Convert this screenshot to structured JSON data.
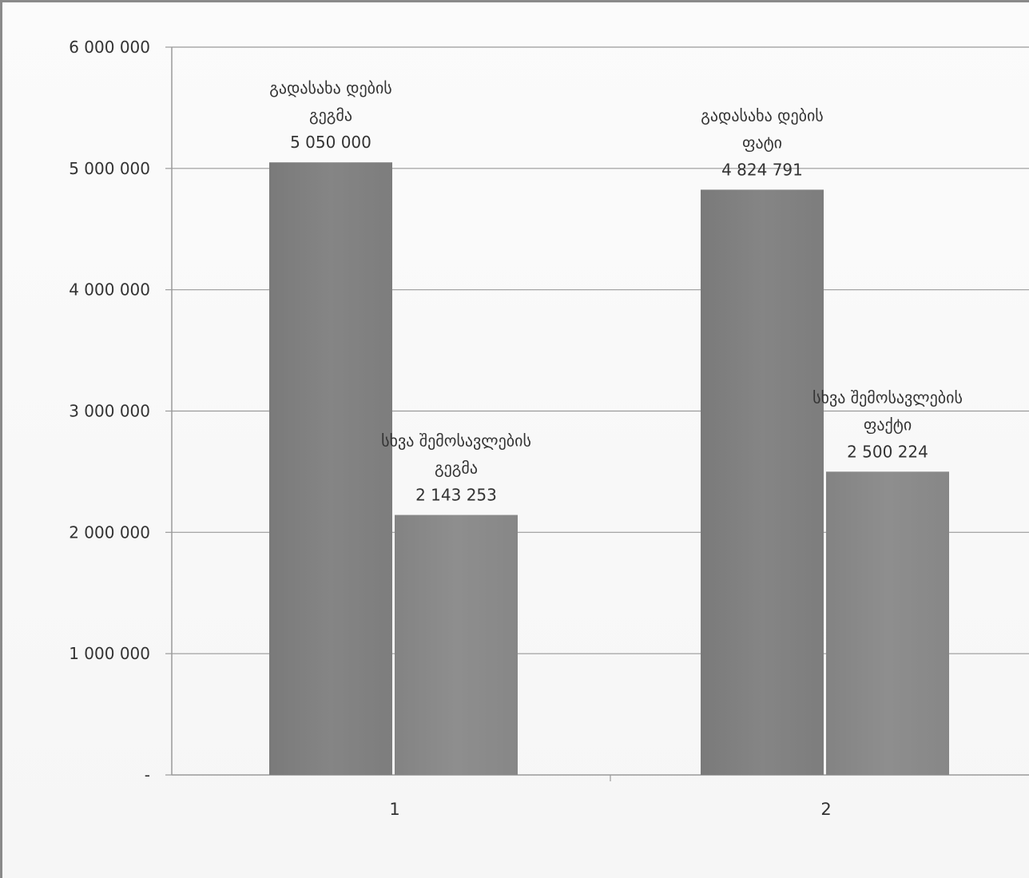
{
  "chart_data": {
    "type": "bar",
    "categories": [
      "1",
      "2"
    ],
    "series": [
      {
        "values": [
          5050000,
          4824791
        ],
        "labels": [
          [
            "გადასახა დების",
            "გეგმა",
            "5 050 000"
          ],
          [
            "გადასახა დების",
            "ფატი",
            "4 824 791"
          ]
        ]
      },
      {
        "values": [
          2143253,
          2500224
        ],
        "labels": [
          [
            "სხვა შემოსავლების",
            "გეგმა",
            "2 143 253"
          ],
          [
            "სხვა შემოსავლების",
            "ფაქტი",
            "2 500 224"
          ]
        ]
      }
    ],
    "yticks": [
      {
        "value": 0,
        "label": "-"
      },
      {
        "value": 1000000,
        "label": "1 000 000"
      },
      {
        "value": 2000000,
        "label": "2 000 000"
      },
      {
        "value": 3000000,
        "label": "3 000 000"
      },
      {
        "value": 4000000,
        "label": "4 000 000"
      },
      {
        "value": 5000000,
        "label": "5 000 000"
      },
      {
        "value": 6000000,
        "label": "6 000 000"
      }
    ],
    "ylim": [
      0,
      6000000
    ],
    "grid": true,
    "legend": "none",
    "colors": {
      "bar_left": "#828282",
      "bar_right": "#8c8c8c",
      "grid": "#9a9a9a",
      "text": "#333333"
    }
  }
}
